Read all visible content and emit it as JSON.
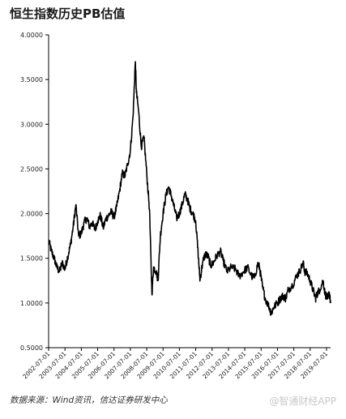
{
  "header": {
    "title": "恒生指数历史PB估值"
  },
  "footer": {
    "source": "数据来源：Wind资讯，信达证券研发中心",
    "watermark": "@智通财经APP"
  },
  "chart_data": {
    "type": "line",
    "title": "恒生指数历史PB估值",
    "xlabel": "",
    "ylabel": "",
    "ylim": [
      0.5,
      4.0
    ],
    "y_ticks": [
      "0.5000",
      "1.0000",
      "1.5000",
      "2.0000",
      "2.5000",
      "3.0000",
      "3.5000",
      "4.0000"
    ],
    "y_tick_values": [
      0.5,
      1.0,
      1.5,
      2.0,
      2.5,
      3.0,
      3.5,
      4.0
    ],
    "x_range": [
      "2002-07-01",
      "2019-10-01"
    ],
    "x_ticks": [
      "2002-07-01",
      "2003-07-01",
      "2004-07-01",
      "2005-07-01",
      "2006-07-01",
      "2007-07-01",
      "2008-07-01",
      "2009-07-01",
      "2010-07-01",
      "2011-07-01",
      "2012-07-01",
      "2013-07-01",
      "2014-07-01",
      "2015-07-01",
      "2016-07-01",
      "2017-07-01",
      "2018-07-01",
      "2019-07-01"
    ],
    "grid": false,
    "series": [
      {
        "color": "#000000",
        "points": [
          [
            "2002-07-01",
            1.7
          ],
          [
            "2002-09-01",
            1.58
          ],
          [
            "2002-11-01",
            1.5
          ],
          [
            "2003-01-01",
            1.4
          ],
          [
            "2003-03-01",
            1.35
          ],
          [
            "2003-05-01",
            1.45
          ],
          [
            "2003-07-01",
            1.38
          ],
          [
            "2003-09-01",
            1.52
          ],
          [
            "2003-11-01",
            1.65
          ],
          [
            "2004-01-01",
            1.85
          ],
          [
            "2004-03-01",
            2.1
          ],
          [
            "2004-05-01",
            1.75
          ],
          [
            "2004-07-01",
            1.78
          ],
          [
            "2004-09-01",
            1.9
          ],
          [
            "2004-11-01",
            1.95
          ],
          [
            "2005-01-01",
            1.85
          ],
          [
            "2005-03-01",
            1.9
          ],
          [
            "2005-05-01",
            1.82
          ],
          [
            "2005-07-01",
            1.92
          ],
          [
            "2005-09-01",
            1.98
          ],
          [
            "2005-11-01",
            1.84
          ],
          [
            "2006-01-01",
            1.94
          ],
          [
            "2006-03-01",
            1.98
          ],
          [
            "2006-05-01",
            2.02
          ],
          [
            "2006-07-01",
            1.96
          ],
          [
            "2006-09-01",
            2.08
          ],
          [
            "2006-11-01",
            2.25
          ],
          [
            "2007-01-01",
            2.45
          ],
          [
            "2007-03-01",
            2.42
          ],
          [
            "2007-05-01",
            2.55
          ],
          [
            "2007-07-01",
            2.7
          ],
          [
            "2007-09-01",
            3.1
          ],
          [
            "2007-10-20",
            3.7
          ],
          [
            "2007-11-15",
            3.35
          ],
          [
            "2008-01-01",
            3.15
          ],
          [
            "2008-03-01",
            2.75
          ],
          [
            "2008-05-01",
            2.85
          ],
          [
            "2008-07-01",
            2.45
          ],
          [
            "2008-09-01",
            2.05
          ],
          [
            "2008-10-25",
            1.1
          ],
          [
            "2008-12-01",
            1.4
          ],
          [
            "2009-02-01",
            1.35
          ],
          [
            "2009-03-10",
            1.25
          ],
          [
            "2009-05-01",
            1.75
          ],
          [
            "2009-07-01",
            2.0
          ],
          [
            "2009-09-01",
            2.2
          ],
          [
            "2009-11-01",
            2.3
          ],
          [
            "2010-01-01",
            2.2
          ],
          [
            "2010-03-01",
            2.08
          ],
          [
            "2010-05-01",
            1.95
          ],
          [
            "2010-07-01",
            2.0
          ],
          [
            "2010-09-01",
            2.1
          ],
          [
            "2010-11-01",
            2.22
          ],
          [
            "2011-01-01",
            2.15
          ],
          [
            "2011-03-01",
            2.05
          ],
          [
            "2011-05-01",
            2.0
          ],
          [
            "2011-07-01",
            1.92
          ],
          [
            "2011-09-01",
            1.5
          ],
          [
            "2011-10-05",
            1.25
          ],
          [
            "2011-12-01",
            1.45
          ],
          [
            "2012-02-01",
            1.55
          ],
          [
            "2012-04-01",
            1.52
          ],
          [
            "2012-06-01",
            1.42
          ],
          [
            "2012-08-01",
            1.45
          ],
          [
            "2012-10-01",
            1.52
          ],
          [
            "2013-01-01",
            1.58
          ],
          [
            "2013-03-01",
            1.48
          ],
          [
            "2013-06-01",
            1.35
          ],
          [
            "2013-09-01",
            1.4
          ],
          [
            "2013-12-01",
            1.38
          ],
          [
            "2014-03-01",
            1.3
          ],
          [
            "2014-06-01",
            1.35
          ],
          [
            "2014-09-01",
            1.4
          ],
          [
            "2014-12-01",
            1.3
          ],
          [
            "2015-02-01",
            1.28
          ],
          [
            "2015-04-25",
            1.45
          ],
          [
            "2015-06-01",
            1.38
          ],
          [
            "2015-08-01",
            1.18
          ],
          [
            "2015-10-01",
            1.05
          ],
          [
            "2016-01-01",
            0.95
          ],
          [
            "2016-02-12",
            0.88
          ],
          [
            "2016-04-01",
            0.95
          ],
          [
            "2016-07-01",
            1.0
          ],
          [
            "2016-09-01",
            1.05
          ],
          [
            "2016-11-01",
            1.08
          ],
          [
            "2017-01-01",
            1.05
          ],
          [
            "2017-03-01",
            1.15
          ],
          [
            "2017-06-01",
            1.2
          ],
          [
            "2017-09-01",
            1.3
          ],
          [
            "2017-11-01",
            1.35
          ],
          [
            "2018-01-26",
            1.45
          ],
          [
            "2018-03-01",
            1.35
          ],
          [
            "2018-05-01",
            1.33
          ],
          [
            "2018-07-01",
            1.25
          ],
          [
            "2018-09-01",
            1.15
          ],
          [
            "2018-10-30",
            1.05
          ],
          [
            "2018-12-01",
            1.1
          ],
          [
            "2019-02-01",
            1.15
          ],
          [
            "2019-04-15",
            1.25
          ],
          [
            "2019-06-01",
            1.1
          ],
          [
            "2019-08-01",
            1.05
          ],
          [
            "2019-09-01",
            1.12
          ],
          [
            "2019-10-01",
            1.0
          ]
        ]
      }
    ]
  }
}
